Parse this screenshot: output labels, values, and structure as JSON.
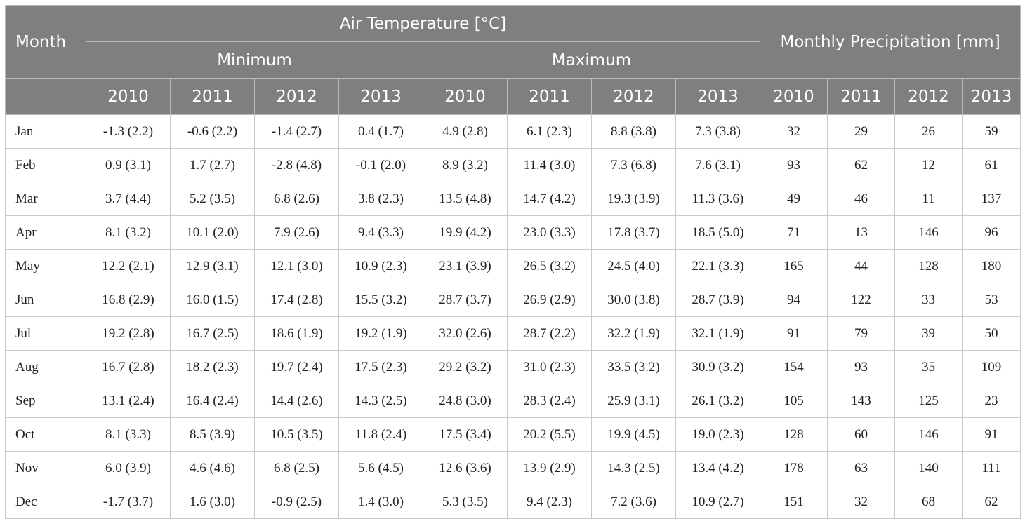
{
  "header": {
    "month_label": "Month",
    "air_temp_label": "Air Temperature [°C]",
    "precip_label": "Monthly Precipitation [mm]",
    "minimum_label": "Minimum",
    "maximum_label": "Maximum",
    "years": [
      "2010",
      "2011",
      "2012",
      "2013"
    ]
  },
  "rows": [
    {
      "month": "Jan",
      "min": [
        "-1.3 (2.2)",
        "-0.6 (2.2)",
        "-1.4 (2.7)",
        "0.4 (1.7)"
      ],
      "max": [
        "4.9 (2.8)",
        "6.1 (2.3)",
        "8.8 (3.8)",
        "7.3 (3.8)"
      ],
      "precip": [
        "32",
        "29",
        "26",
        "59"
      ]
    },
    {
      "month": "Feb",
      "min": [
        "0.9 (3.1)",
        "1.7 (2.7)",
        "-2.8 (4.8)",
        "-0.1 (2.0)"
      ],
      "max": [
        "8.9 (3.2)",
        "11.4 (3.0)",
        "7.3 (6.8)",
        "7.6 (3.1)"
      ],
      "precip": [
        "93",
        "62",
        "12",
        "61"
      ]
    },
    {
      "month": "Mar",
      "min": [
        "3.7 (4.4)",
        "5.2 (3.5)",
        "6.8 (2.6)",
        "3.8 (2.3)"
      ],
      "max": [
        "13.5 (4.8)",
        "14.7 (4.2)",
        "19.3 (3.9)",
        "11.3 (3.6)"
      ],
      "precip": [
        "49",
        "46",
        "11",
        "137"
      ]
    },
    {
      "month": "Apr",
      "min": [
        "8.1 (3.2)",
        "10.1 (2.0)",
        "7.9 (2.6)",
        "9.4 (3.3)"
      ],
      "max": [
        "19.9 (4.2)",
        "23.0 (3.3)",
        "17.8 (3.7)",
        "18.5 (5.0)"
      ],
      "precip": [
        "71",
        "13",
        "146",
        "96"
      ]
    },
    {
      "month": "May",
      "min": [
        "12.2 (2.1)",
        "12.9 (3.1)",
        "12.1 (3.0)",
        "10.9 (2.3)"
      ],
      "max": [
        "23.1 (3.9)",
        "26.5 (3.2)",
        "24.5 (4.0)",
        "22.1 (3.3)"
      ],
      "precip": [
        "165",
        "44",
        "128",
        "180"
      ]
    },
    {
      "month": "Jun",
      "min": [
        "16.8 (2.9)",
        "16.0 (1.5)",
        "17.4 (2.8)",
        "15.5 (3.2)"
      ],
      "max": [
        "28.7 (3.7)",
        "26.9 (2.9)",
        "30.0 (3.8)",
        "28.7 (3.9)"
      ],
      "precip": [
        "94",
        "122",
        "33",
        "53"
      ]
    },
    {
      "month": "Jul",
      "min": [
        "19.2 (2.8)",
        "16.7 (2.5)",
        "18.6 (1.9)",
        "19.2 (1.9)"
      ],
      "max": [
        "32.0 (2.6)",
        "28.7 (2.2)",
        "32.2 (1.9)",
        "32.1 (1.9)"
      ],
      "precip": [
        "91",
        "79",
        "39",
        "50"
      ]
    },
    {
      "month": "Aug",
      "min": [
        "16.7 (2.8)",
        "18.2 (2.3)",
        "19.7 (2.4)",
        "17.5 (2.3)"
      ],
      "max": [
        "29.2 (3.2)",
        "31.0 (2.3)",
        "33.5 (3.2)",
        "30.9 (3.2)"
      ],
      "precip": [
        "154",
        "93",
        "35",
        "109"
      ]
    },
    {
      "month": "Sep",
      "min": [
        "13.1 (2.4)",
        "16.4 (2.4)",
        "14.4 (2.6)",
        "14.3 (2.5)"
      ],
      "max": [
        "24.8 (3.0)",
        "28.3 (2.4)",
        "25.9 (3.1)",
        "26.1 (3.2)"
      ],
      "precip": [
        "105",
        "143",
        "125",
        "23"
      ]
    },
    {
      "month": "Oct",
      "min": [
        "8.1 (3.3)",
        "8.5 (3.9)",
        "10.5 (3.5)",
        "11.8 (2.4)"
      ],
      "max": [
        "17.5 (3.4)",
        "20.2 (5.5)",
        "19.9 (4.5)",
        "19.0 (2.3)"
      ],
      "precip": [
        "128",
        "60",
        "146",
        "91"
      ]
    },
    {
      "month": "Nov",
      "min": [
        "6.0 (3.9)",
        "4.6 (4.6)",
        "6.8 (2.5)",
        "5.6 (4.5)"
      ],
      "max": [
        "12.6 (3.6)",
        "13.9 (2.9)",
        "14.3 (2.5)",
        "13.4 (4.2)"
      ],
      "precip": [
        "178",
        "63",
        "140",
        "111"
      ]
    },
    {
      "month": "Dec",
      "min": [
        "-1.7 (3.7)",
        "1.6 (3.0)",
        "-0.9 (2.5)",
        "1.4 (3.0)"
      ],
      "max": [
        "5.3 (3.5)",
        "9.4 (2.3)",
        "7.2 (3.6)",
        "10.9 (2.7)"
      ],
      "precip": [
        "151",
        "32",
        "68",
        "62"
      ]
    }
  ]
}
